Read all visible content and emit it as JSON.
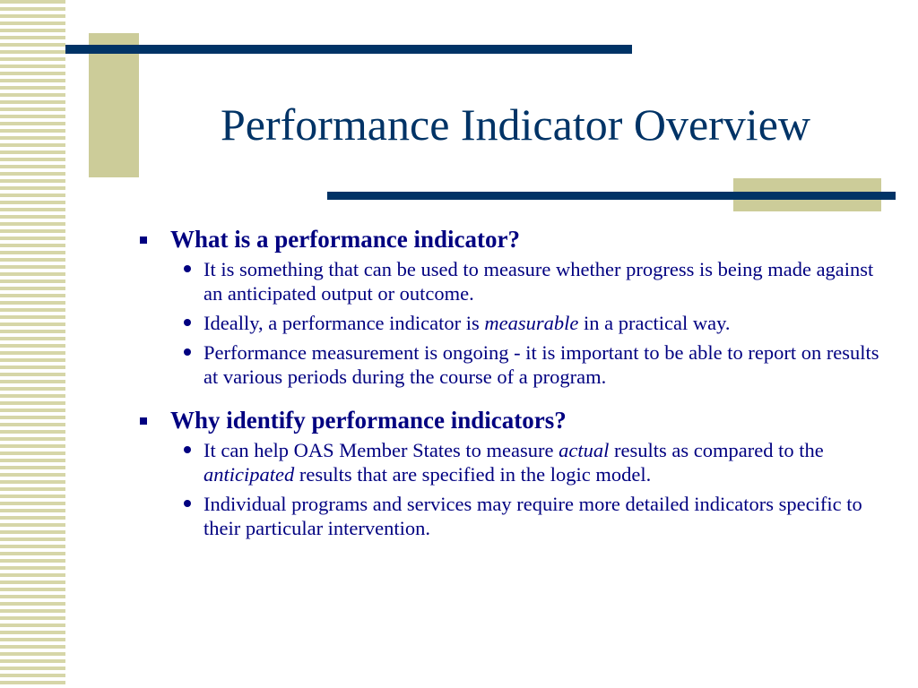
{
  "slide": {
    "title": "Performance Indicator Overview",
    "sections": [
      {
        "heading": "What is a performance indicator?",
        "bullets": [
          {
            "parts": [
              "It is something that can be used to measure whether progress is being made against an anticipated output or outcome."
            ]
          },
          {
            "parts": [
              "Ideally, a performance indicator is ",
              "measurable",
              " in a practical way."
            ]
          },
          {
            "parts": [
              "Performance measurement is ongoing - it is important to be able to report on results at various periods during the course of a program."
            ]
          }
        ]
      },
      {
        "heading": "Why identify performance indicators?",
        "bullets": [
          {
            "parts": [
              "It can help OAS Member States to measure ",
              "actual",
              " results as compared to the ",
              "anticipated",
              " results that are specified in the logic model."
            ]
          },
          {
            "parts": [
              "Individual programs and services may require more detailed indicators specific to their particular intervention."
            ]
          }
        ]
      }
    ]
  },
  "colors": {
    "text": "#000080",
    "title": "#003366",
    "accent_block": "#cccc99",
    "accent_line": "#003366",
    "stripe": "#d6d6a8"
  }
}
